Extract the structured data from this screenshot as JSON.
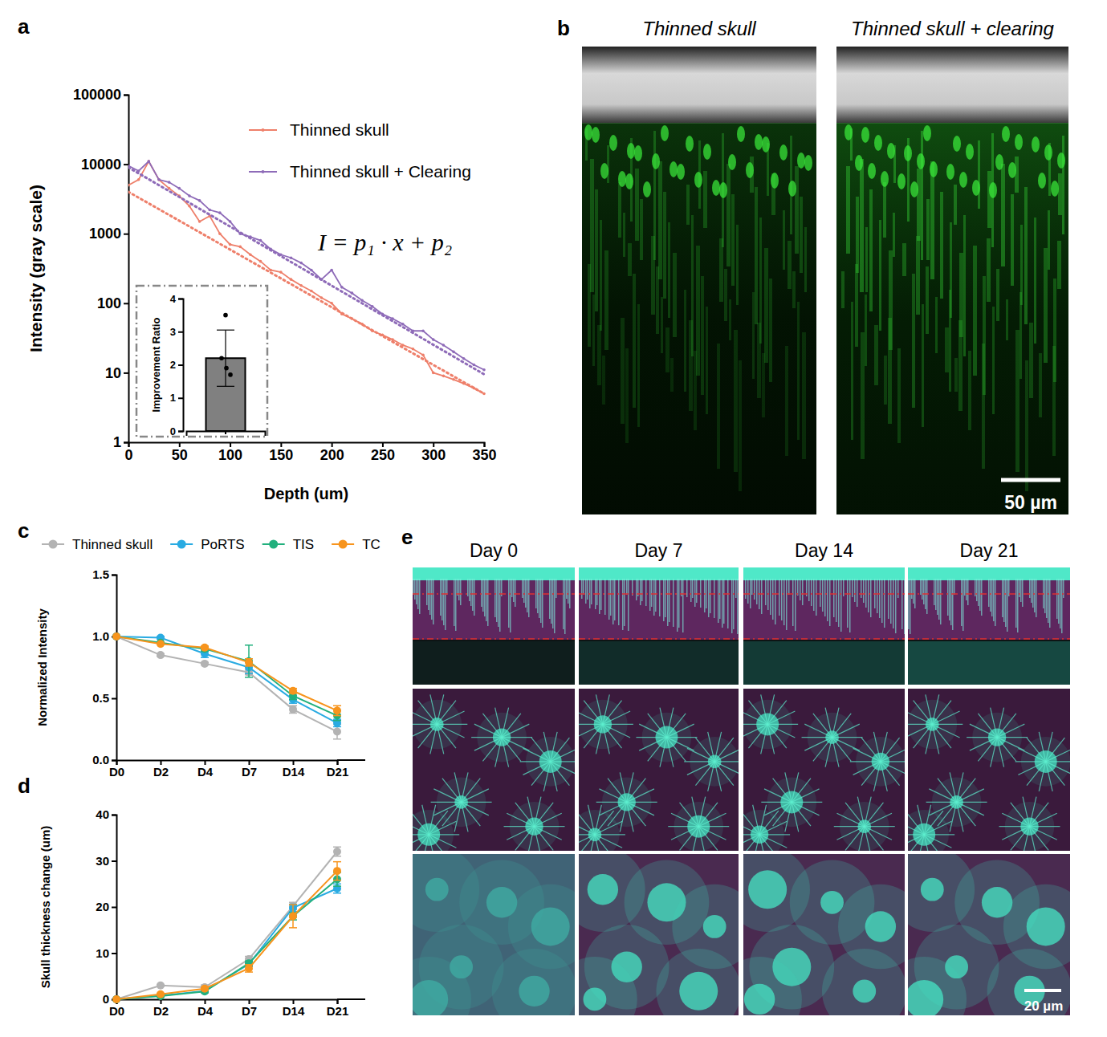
{
  "chart_data": [
    {
      "type": "line",
      "label": "a",
      "log": "y",
      "legend": "upper right",
      "xlabel": "Depth (um)",
      "ylabel": "Intensity (gray scale)",
      "annotations": [
        "I = p₁ · x + p₂"
      ],
      "xlim": [
        0,
        350
      ],
      "xticks": [
        0,
        50,
        100,
        150,
        200,
        250,
        300,
        350
      ],
      "ylim": [
        1,
        100000
      ],
      "yticks": [
        1,
        10,
        100,
        1000,
        10000,
        100000
      ],
      "x": [
        0,
        10,
        20,
        30,
        40,
        50,
        60,
        70,
        80,
        90,
        100,
        110,
        120,
        130,
        140,
        150,
        160,
        170,
        180,
        190,
        200,
        210,
        220,
        230,
        240,
        250,
        260,
        270,
        280,
        290,
        300,
        310,
        320,
        330,
        340,
        350
      ],
      "series": [
        {
          "name": "Thinned skull",
          "color": "#ee7f6a",
          "marker": "dot",
          "line_style": "solid",
          "values": [
            5000,
            6000,
            11000,
            6000,
            4500,
            3500,
            2500,
            1500,
            1800,
            1000,
            700,
            650,
            500,
            400,
            300,
            280,
            220,
            180,
            150,
            120,
            100,
            70,
            60,
            50,
            40,
            35,
            30,
            25,
            22,
            18,
            10,
            9,
            8,
            7,
            6,
            5
          ]
        },
        {
          "name": "Thinned skull + Clearing",
          "color": "#8e6bb8",
          "marker": "dot",
          "line_style": "solid",
          "values": [
            9500,
            8000,
            11000,
            6000,
            5500,
            4500,
            3500,
            3000,
            2200,
            2000,
            1500,
            1000,
            900,
            800,
            600,
            500,
            450,
            380,
            300,
            220,
            300,
            170,
            140,
            110,
            90,
            70,
            60,
            50,
            40,
            40,
            30,
            25,
            20,
            16,
            13,
            11
          ]
        },
        {
          "color": "#ee7f6a",
          "line_style": "dotted",
          "marker": "none",
          "x": [
            0,
            350
          ],
          "values": [
            4000,
            5
          ]
        },
        {
          "color": "#8e6bb8",
          "line_style": "dotted",
          "marker": "none",
          "x": [
            0,
            350
          ],
          "values": [
            9000,
            9.5
          ]
        }
      ],
      "inset": {
        "type": "bar",
        "ylabel": "Improvement Ratio",
        "categories": [
          null
        ],
        "values": [
          2.2
        ],
        "errors": [
          0.85
        ],
        "points": [
          3.5,
          2.2,
          1.9,
          1.7
        ],
        "color": "#808080",
        "ylim": [
          0,
          4
        ],
        "yticks": [
          0,
          1,
          2,
          3,
          4
        ]
      }
    },
    {
      "type": "image",
      "label": "b",
      "titles": [
        "Thinned skull",
        "Thinned skull + clearing"
      ],
      "scale_bar": "50 µm"
    },
    {
      "type": "line",
      "label": "c",
      "legend": "top",
      "ylabel": "Normalized Intensity",
      "categories": [
        "D0",
        "D2",
        "D4",
        "D7",
        "D14",
        "D21"
      ],
      "ylim": [
        0,
        1.5
      ],
      "yticks": [
        {
          "value": 0,
          "label": "0.0"
        },
        0.5,
        {
          "value": 1,
          "label": "1.0"
        },
        1.5
      ],
      "series": [
        {
          "name": "Thinned skull",
          "color": "#b3b3b3",
          "marker": "circle",
          "values": [
            1,
            0.85,
            0.78,
            0.71,
            0.41,
            0.23
          ],
          "errors": [
            0,
            0.01,
            0.01,
            0.02,
            0.03,
            0.06
          ]
        },
        {
          "name": "PoRTS",
          "color": "#29abe2",
          "marker": "circle",
          "values": [
            1,
            0.99,
            0.86,
            0.75,
            0.49,
            0.3
          ],
          "errors": [
            0,
            0.01,
            0.03,
            0.05,
            0.03,
            0.03
          ]
        },
        {
          "name": "TIS",
          "color": "#22b07d",
          "marker": "circle",
          "values": [
            1,
            0.95,
            0.9,
            0.8,
            0.52,
            0.36
          ],
          "errors": [
            0,
            0,
            0.02,
            0.13,
            0.03,
            0.04
          ]
        },
        {
          "name": "TC",
          "color": "#f7941d",
          "marker": "circle",
          "values": [
            1,
            0.94,
            0.91,
            0.79,
            0.56,
            0.4
          ],
          "errors": [
            0,
            0,
            0.01,
            0.03,
            0.02,
            0.04
          ]
        }
      ]
    },
    {
      "type": "line",
      "label": "d",
      "legend": "none",
      "ylabel": "Skull thickness change (um)",
      "categories": [
        "D0",
        "D2",
        "D4",
        "D7",
        "D14",
        "D21"
      ],
      "ylim": [
        0,
        40
      ],
      "yticks": [
        0,
        10,
        20,
        30,
        40
      ],
      "series": [
        {
          "name": "Thinned skull",
          "color": "#b3b3b3",
          "marker": "circle",
          "values": [
            0,
            3.0,
            2.6,
            8.7,
            20.2,
            32.0
          ],
          "errors": [
            0,
            0.2,
            0.5,
            0.6,
            0.8,
            1.0
          ]
        },
        {
          "name": "PoRTS",
          "color": "#29abe2",
          "marker": "circle",
          "values": [
            0,
            0.8,
            1.8,
            7.6,
            19.8,
            24.0
          ],
          "errors": [
            0,
            0.2,
            0.3,
            0.5,
            0.8,
            1.0
          ]
        },
        {
          "name": "TIS",
          "color": "#22b07d",
          "marker": "circle",
          "values": [
            0,
            0.7,
            1.7,
            7.8,
            18.0,
            26.0
          ],
          "errors": [
            0,
            0.1,
            0.3,
            0.5,
            0.8,
            1.5
          ]
        },
        {
          "name": "TC",
          "color": "#f7941d",
          "marker": "circle",
          "values": [
            0,
            1.1,
            2.3,
            6.7,
            18.0,
            27.8
          ],
          "errors": [
            0,
            0.2,
            0.3,
            0.8,
            2.5,
            2.0
          ]
        }
      ]
    },
    {
      "type": "image",
      "label": "e",
      "titles": [
        "Day 0",
        "Day 7",
        "Day 14",
        "Day 21"
      ],
      "scale_bar": "20 µm"
    }
  ]
}
